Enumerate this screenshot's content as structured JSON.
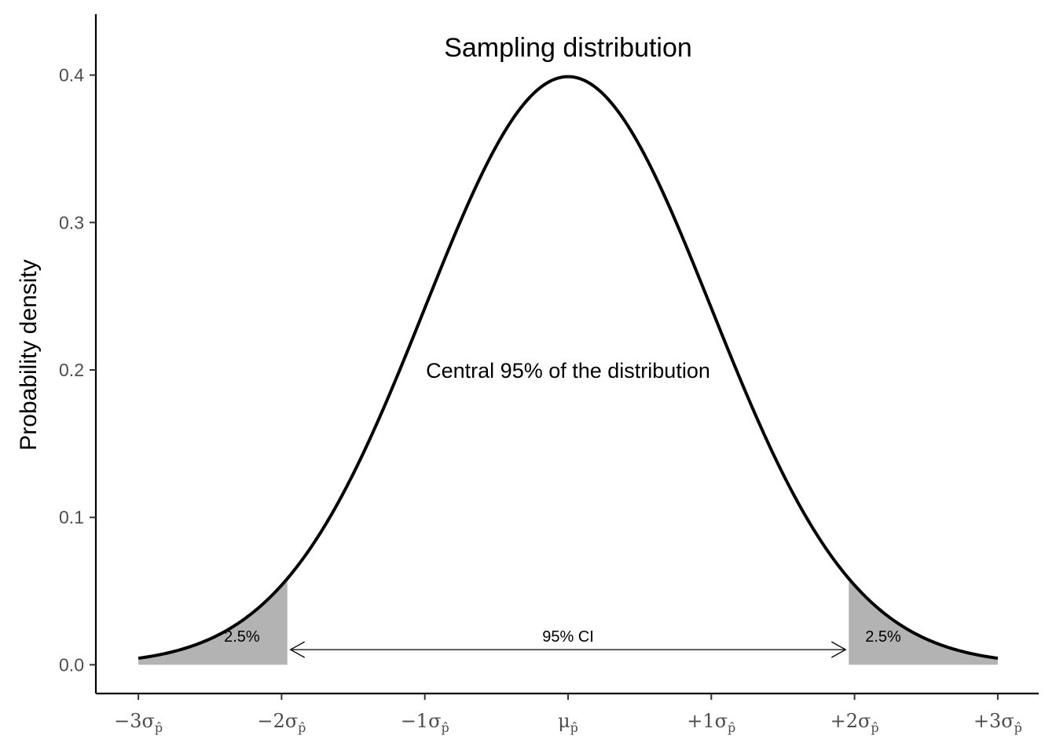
{
  "chart_data": {
    "type": "area",
    "title": "Sampling distribution",
    "xlabel": "",
    "ylabel": "Probability density",
    "xlim": [
      -3.3,
      3.3
    ],
    "ylim": [
      -0.02,
      0.44
    ],
    "yticks": [
      0.0,
      0.1,
      0.2,
      0.3,
      0.4
    ],
    "ytick_labels": [
      "0.0",
      "0.1",
      "0.2",
      "0.3",
      "0.4"
    ],
    "xticks": [
      -3,
      -2,
      -1,
      0,
      1,
      2,
      3
    ],
    "xtick_labels": [
      {
        "main": "−3σ",
        "sub": "p̂"
      },
      {
        "main": "−2σ",
        "sub": "p̂"
      },
      {
        "main": "−1σ",
        "sub": "p̂"
      },
      {
        "main": "μ",
        "sub": "p̂"
      },
      {
        "main": "+1σ",
        "sub": "p̂"
      },
      {
        "main": "+2σ",
        "sub": "p̂"
      },
      {
        "main": "+3σ",
        "sub": "p̂"
      }
    ],
    "curve": {
      "distribution": "normal",
      "mean": 0,
      "sd": 1,
      "x_range": [
        -3,
        3
      ],
      "color": "#000000"
    },
    "shaded_regions": [
      {
        "from": -3,
        "to": -1.96,
        "label": "2.5%",
        "label_x": -2.2,
        "label_y": 0.0195,
        "color": "#b3b3b3"
      },
      {
        "from": 1.96,
        "to": 3,
        "label": "2.5%",
        "label_x": 2.2,
        "label_y": 0.0195,
        "color": "#b3b3b3"
      }
    ],
    "interval_arrow": {
      "from": -1.96,
      "to": 1.96,
      "y": 0.01,
      "label": "95% CI",
      "label_y": 0.0195
    },
    "annotations": [
      {
        "text": "Central 95% of the distribution",
        "x": 0,
        "y": 0.2
      }
    ],
    "grid": false
  }
}
